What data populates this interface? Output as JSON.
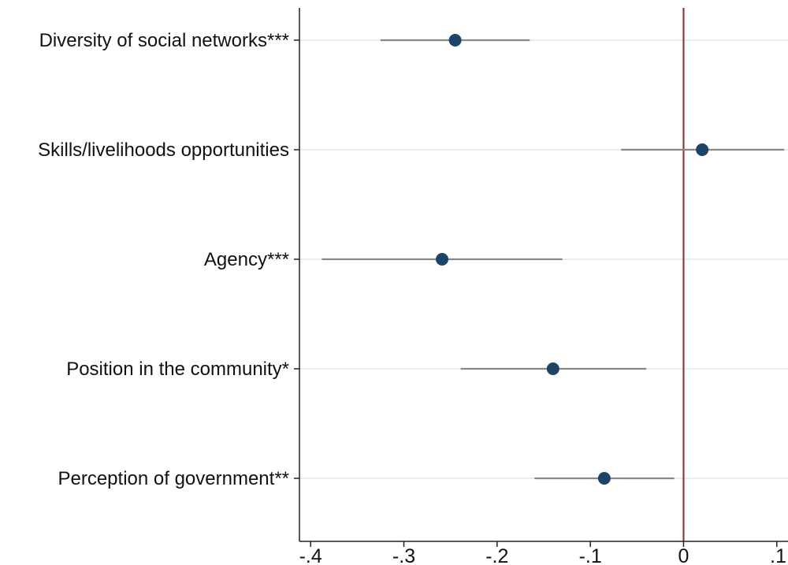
{
  "chart_data": {
    "type": "scatter",
    "subtype": "coefficient-plot",
    "title": "",
    "xlabel": "",
    "ylabel": "",
    "xlim": [
      -0.412,
      0.112
    ],
    "xticks": [
      {
        "value": -0.4,
        "label": "-.4"
      },
      {
        "value": -0.3,
        "label": "-.3"
      },
      {
        "value": -0.2,
        "label": "-.2"
      },
      {
        "value": -0.1,
        "label": "-.1"
      },
      {
        "value": 0,
        "label": "0"
      },
      {
        "value": 0.1,
        "label": ".1"
      }
    ],
    "reference_line": {
      "x": 0,
      "color": "#8b2a2a"
    },
    "grid": true,
    "marker_color": "#1b4466",
    "ci_color": "#888888",
    "points": [
      {
        "label": "Diversity of social networks***",
        "estimate": -0.245,
        "ci_low": -0.325,
        "ci_high": -0.165
      },
      {
        "label": "Skills/livelihoods opportunities",
        "estimate": 0.02,
        "ci_low": -0.067,
        "ci_high": 0.108
      },
      {
        "label": "Agency***",
        "estimate": -0.259,
        "ci_low": -0.388,
        "ci_high": -0.13
      },
      {
        "label": "Position in the community*",
        "estimate": -0.14,
        "ci_low": -0.239,
        "ci_high": -0.04
      },
      {
        "label": "Perception of government**",
        "estimate": -0.085,
        "ci_low": -0.16,
        "ci_high": -0.01
      }
    ]
  }
}
